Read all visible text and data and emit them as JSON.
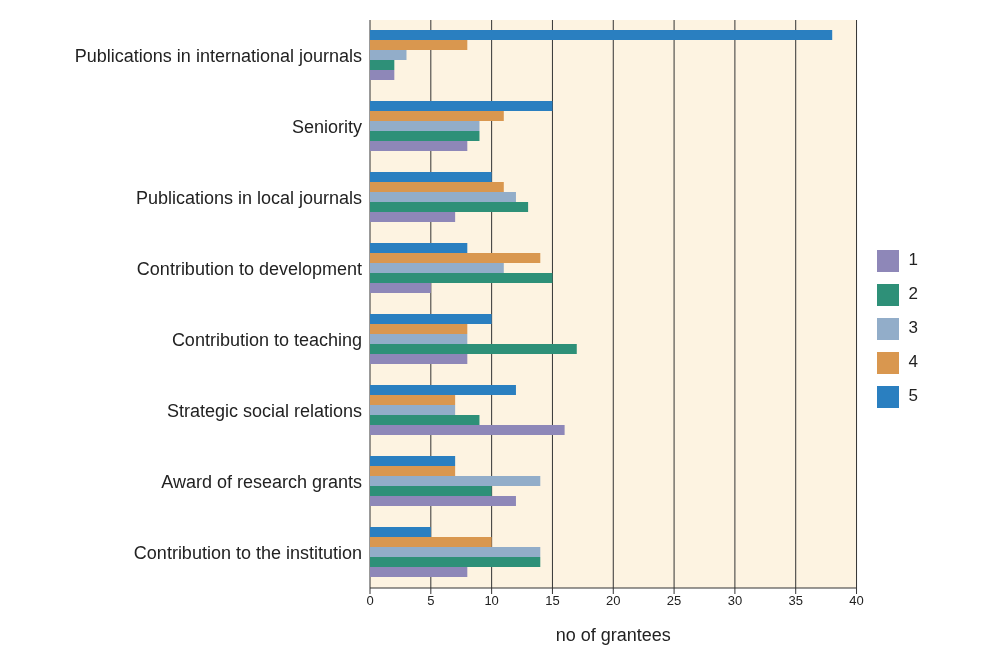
{
  "chart_data": {
    "type": "bar",
    "orientation": "horizontal",
    "xlabel": "no of grantees",
    "categories": [
      "Publications in international journals",
      "Seniority",
      "Publications in local journals",
      "Contribution to development",
      "Contribution to teaching",
      "Strategic social relations",
      "Award of research grants",
      "Contribution to the institution"
    ],
    "series": [
      {
        "name": "5",
        "color": "#2a7fc0",
        "values": [
          38,
          15,
          10,
          8,
          10,
          12,
          7,
          5
        ]
      },
      {
        "name": "4",
        "color": "#d9974f",
        "values": [
          8,
          11,
          11,
          14,
          8,
          7,
          7,
          10
        ]
      },
      {
        "name": "3",
        "color": "#92adc9",
        "values": [
          3,
          9,
          12,
          11,
          8,
          7,
          14,
          14
        ]
      },
      {
        "name": "2",
        "color": "#2e9078",
        "values": [
          2,
          9,
          13,
          15,
          17,
          9,
          10,
          14
        ]
      },
      {
        "name": "1",
        "color": "#8e87b8",
        "values": [
          2,
          8,
          7,
          5,
          8,
          16,
          12,
          8
        ]
      }
    ],
    "xlim": [
      0,
      40
    ],
    "xticks": [
      0,
      5,
      10,
      15,
      20,
      25,
      30,
      35,
      40
    ],
    "grid": "x",
    "legend": "right"
  }
}
